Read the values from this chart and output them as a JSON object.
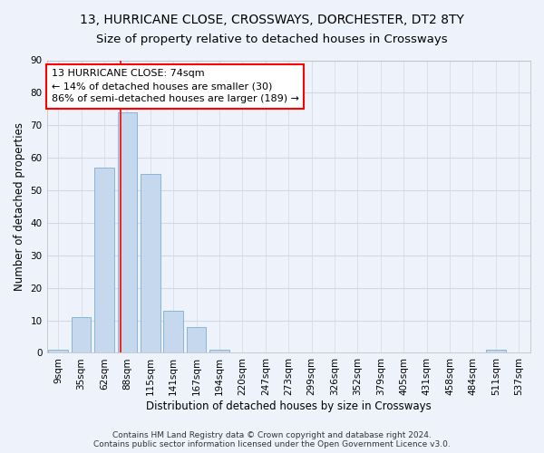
{
  "title": "13, HURRICANE CLOSE, CROSSWAYS, DORCHESTER, DT2 8TY",
  "subtitle": "Size of property relative to detached houses in Crossways",
  "xlabel": "Distribution of detached houses by size in Crossways",
  "ylabel": "Number of detached properties",
  "bar_labels": [
    "9sqm",
    "35sqm",
    "62sqm",
    "88sqm",
    "115sqm",
    "141sqm",
    "167sqm",
    "194sqm",
    "220sqm",
    "247sqm",
    "273sqm",
    "299sqm",
    "326sqm",
    "352sqm",
    "379sqm",
    "405sqm",
    "431sqm",
    "458sqm",
    "484sqm",
    "511sqm",
    "537sqm"
  ],
  "bar_values": [
    1,
    11,
    57,
    74,
    55,
    13,
    8,
    1,
    0,
    0,
    0,
    0,
    0,
    0,
    0,
    0,
    0,
    0,
    0,
    1,
    0
  ],
  "bar_color": "#c5d8ed",
  "bar_edge_color": "#7bafd4",
  "red_line_x": 2.72,
  "annotation_line1": "13 HURRICANE CLOSE: 74sqm",
  "annotation_line2": "← 14% of detached houses are smaller (30)",
  "annotation_line3": "86% of semi-detached houses are larger (189) →",
  "annotation_box_color": "white",
  "annotation_box_edge": "red",
  "ylim": [
    0,
    90
  ],
  "yticks": [
    0,
    10,
    20,
    30,
    40,
    50,
    60,
    70,
    80,
    90
  ],
  "grid_color": "#d0d8e8",
  "background_color": "#eef2fa",
  "footer_line1": "Contains HM Land Registry data © Crown copyright and database right 2024.",
  "footer_line2": "Contains public sector information licensed under the Open Government Licence v3.0.",
  "title_fontsize": 10,
  "subtitle_fontsize": 9.5,
  "tick_fontsize": 7.5,
  "ylabel_fontsize": 8.5,
  "xlabel_fontsize": 8.5,
  "annotation_fontsize": 8,
  "footer_fontsize": 6.5
}
